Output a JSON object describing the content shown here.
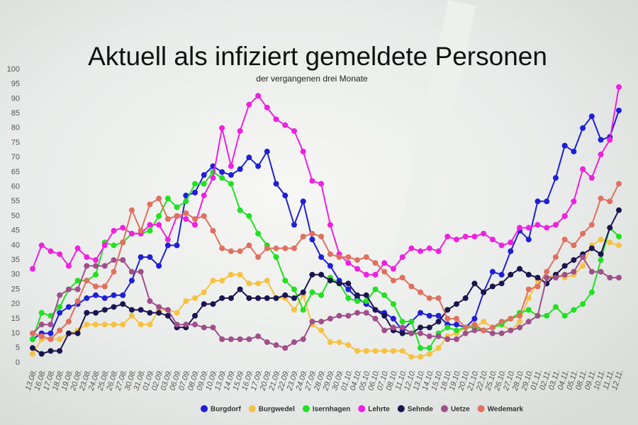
{
  "chart_data": {
    "type": "line",
    "title": "Aktuell als infiziert gemeldete Personen",
    "subtitle": "der vergangenen drei Monate",
    "categories": [
      "13.08.",
      "16.08.",
      "17.08.",
      "18.08.",
      "19.08.",
      "20.08.",
      "23.08.",
      "24.08.",
      "25.08.",
      "26.08.",
      "27.08.",
      "30.08.",
      "31.08.",
      "01.09.",
      "02.09.",
      "03.09.",
      "06.09.",
      "07.09.",
      "08.09.",
      "09.09.",
      "10.09.",
      "13.09.",
      "14.09.",
      "15.09.",
      "16.09.",
      "17.09.",
      "20.09.",
      "21.09.",
      "22.09.",
      "23.09.",
      "24.09.",
      "27.09.",
      "28.09.",
      "29.09.",
      "30.09.",
      "01.10.",
      "04.10.",
      "05.10.",
      "06.10.",
      "07.10.",
      "08.10.",
      "11.10.",
      "12.10.",
      "13.10.",
      "14.10.",
      "15.10.",
      "18.10.",
      "19.10.",
      "20.10.",
      "21.10.",
      "22.10.",
      "25.10.",
      "26.10.",
      "27.10.",
      "28.10.",
      "29.10.",
      "01.11.",
      "02.11.",
      "03.11.",
      "04.11.",
      "05.11.",
      "08.11.",
      "09.11.",
      "10.11.",
      "11.11.",
      "12.11."
    ],
    "series": [
      {
        "name": "Burgdorf",
        "color": "#1f1fd6",
        "values": [
          8,
          10,
          10,
          17,
          19,
          20,
          22,
          23,
          22,
          23,
          23,
          28,
          36,
          36,
          33,
          40,
          40,
          57,
          58,
          64,
          67,
          65,
          64,
          66,
          70,
          67,
          72,
          61,
          57,
          47,
          55,
          42,
          36,
          33,
          28,
          25,
          22,
          20,
          18,
          17,
          15,
          11,
          14,
          17,
          16,
          16,
          13,
          13,
          12,
          15,
          24,
          31,
          30,
          38,
          45,
          42,
          55,
          55,
          63,
          74,
          72,
          80,
          84,
          76,
          77,
          86
        ]
      },
      {
        "name": "Burgwedel",
        "color": "#f5c242",
        "values": [
          3,
          8,
          8,
          8,
          10,
          11,
          13,
          13,
          13,
          13,
          13,
          16,
          13,
          13,
          18,
          18,
          17,
          21,
          22,
          24,
          28,
          28,
          30,
          30,
          27,
          27,
          28,
          22,
          22,
          18,
          23,
          13,
          11,
          7,
          7,
          6,
          4,
          4,
          4,
          4,
          4,
          4,
          2,
          2,
          3,
          5,
          9,
          10,
          12,
          12,
          14,
          12,
          13,
          11,
          14,
          22,
          28,
          29,
          30,
          29,
          30,
          33,
          40,
          42,
          41,
          40
        ]
      },
      {
        "name": "Isernhagen",
        "color": "#22e022",
        "values": [
          8,
          17,
          16,
          19,
          25,
          28,
          28,
          30,
          41,
          40,
          41,
          44,
          44,
          45,
          50,
          56,
          53,
          55,
          61,
          61,
          65,
          63,
          61,
          52,
          50,
          44,
          40,
          36,
          28,
          25,
          18,
          24,
          23,
          29,
          27,
          22,
          21,
          21,
          25,
          23,
          20,
          14,
          14,
          5,
          5,
          10,
          12,
          11,
          12,
          12,
          11,
          12,
          13,
          15,
          17,
          18,
          16,
          16,
          19,
          16,
          18,
          20,
          24,
          35,
          46,
          43
        ]
      },
      {
        "name": "Lehrte",
        "color": "#f020e0",
        "values": [
          32,
          40,
          38,
          37,
          33,
          39,
          36,
          35,
          40,
          45,
          46,
          44,
          44,
          47,
          47,
          42,
          50,
          49,
          47,
          57,
          63,
          80,
          67,
          79,
          88,
          91,
          87,
          83,
          81,
          79,
          72,
          62,
          61,
          47,
          37,
          34,
          32,
          30,
          30,
          34,
          32,
          36,
          39,
          38,
          39,
          38,
          43,
          42,
          43,
          43,
          44,
          42,
          40,
          41,
          46,
          46,
          47,
          46,
          47,
          50,
          55,
          66,
          63,
          71,
          76,
          94
        ]
      },
      {
        "name": "Sehnde",
        "color": "#1a1450",
        "values": [
          5,
          3,
          4,
          4,
          10,
          10,
          17,
          17,
          18,
          19,
          20,
          18,
          18,
          17,
          17,
          16,
          12,
          12,
          16,
          20,
          20,
          22,
          22,
          25,
          22,
          22,
          22,
          22,
          23,
          22,
          24,
          30,
          30,
          28,
          27,
          27,
          23,
          23,
          18,
          16,
          11,
          10,
          10,
          12,
          12,
          14,
          18,
          20,
          22,
          27,
          24,
          26,
          27,
          30,
          32,
          30,
          29,
          27,
          30,
          33,
          35,
          37,
          39,
          37,
          46,
          52
        ]
      },
      {
        "name": "Uetze",
        "color": "#a04f8a",
        "values": [
          10,
          13,
          13,
          23,
          25,
          25,
          33,
          33,
          33,
          35,
          35,
          31,
          31,
          21,
          19,
          18,
          13,
          13,
          13,
          12,
          12,
          8,
          8,
          8,
          8,
          9,
          7,
          6,
          5,
          7,
          8,
          14,
          14,
          15,
          16,
          16,
          17,
          17,
          15,
          11,
          12,
          12,
          10,
          10,
          9,
          9,
          8,
          8,
          10,
          11,
          11,
          10,
          10,
          11,
          12,
          14,
          16,
          29,
          29,
          30,
          31,
          36,
          31,
          31,
          29,
          29
        ]
      },
      {
        "name": "Wedemark",
        "color": "#e07060",
        "values": [
          10,
          9,
          8,
          11,
          14,
          21,
          28,
          26,
          26,
          31,
          41,
          52,
          45,
          54,
          56,
          49,
          50,
          51,
          49,
          50,
          45,
          39,
          38,
          38,
          40,
          36,
          39,
          39,
          39,
          39,
          43,
          44,
          43,
          37,
          36,
          36,
          35,
          36,
          34,
          31,
          28,
          29,
          26,
          24,
          22,
          22,
          15,
          15,
          12,
          13,
          11,
          12,
          14,
          15,
          16,
          25,
          26,
          31,
          36,
          42,
          40,
          44,
          47,
          56,
          55,
          61
        ]
      }
    ],
    "ylim": [
      0,
      100
    ],
    "yticks": [
      0,
      5,
      10,
      15,
      20,
      25,
      30,
      35,
      40,
      45,
      50,
      55,
      60,
      65,
      70,
      75,
      80,
      85,
      90,
      95,
      100
    ],
    "grid": false
  }
}
